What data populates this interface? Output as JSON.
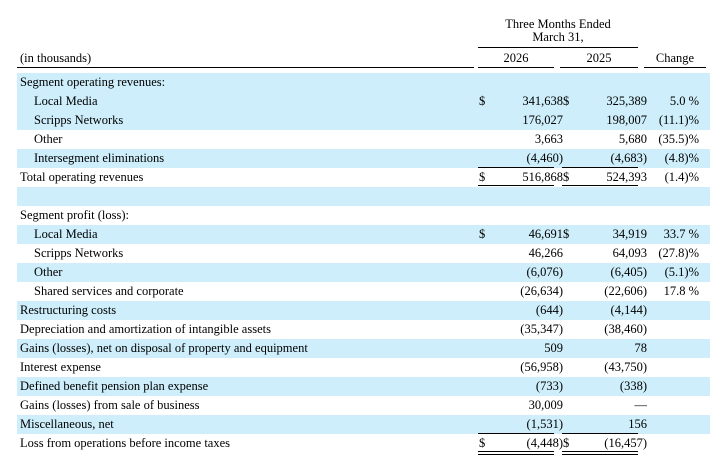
{
  "header": {
    "period_line1": "Three Months Ended",
    "period_line2": "March 31,",
    "units_label": "(in thousands)",
    "year1": "2026",
    "year2": "2025",
    "change": "Change"
  },
  "rows": [
    {
      "label": "Segment operating revenues:",
      "indent": false,
      "shade": true,
      "d1": "",
      "v1": "",
      "d2": "",
      "v2": "",
      "chg": "",
      "rule": ""
    },
    {
      "label": "Local Media",
      "indent": true,
      "shade": true,
      "d1": "$",
      "v1": "341,638",
      "d2": "$",
      "v2": "325,389",
      "chg": "5.0 %",
      "rule": ""
    },
    {
      "label": "Scripps Networks",
      "indent": true,
      "shade": true,
      "d1": "",
      "v1": "176,027",
      "d2": "",
      "v2": "198,007",
      "chg": "(11.1)%",
      "rule": ""
    },
    {
      "label": "Other",
      "indent": true,
      "shade": false,
      "d1": "",
      "v1": "3,663",
      "d2": "",
      "v2": "5,680",
      "chg": "(35.5)%",
      "rule": ""
    },
    {
      "label": "Intersegment eliminations",
      "indent": true,
      "shade": true,
      "d1": "",
      "v1": "(4,460)",
      "d2": "",
      "v2": "(4,683)",
      "chg": "(4.8)%",
      "rule": "single"
    },
    {
      "label": "Total operating revenues",
      "indent": false,
      "shade": false,
      "d1": "$",
      "v1": "516,868",
      "d2": "$",
      "v2": "524,393",
      "chg": "(1.4)%",
      "rule": "double"
    },
    {
      "label": "",
      "indent": false,
      "shade": true,
      "d1": "",
      "v1": "",
      "d2": "",
      "v2": "",
      "chg": "",
      "rule": ""
    },
    {
      "label": "Segment profit (loss):",
      "indent": false,
      "shade": false,
      "d1": "",
      "v1": "",
      "d2": "",
      "v2": "",
      "chg": "",
      "rule": ""
    },
    {
      "label": "Local Media",
      "indent": true,
      "shade": true,
      "d1": "$",
      "v1": "46,691",
      "d2": "$",
      "v2": "34,919",
      "chg": "33.7 %",
      "rule": ""
    },
    {
      "label": "Scripps Networks",
      "indent": true,
      "shade": false,
      "d1": "",
      "v1": "46,266",
      "d2": "",
      "v2": "64,093",
      "chg": "(27.8)%",
      "rule": ""
    },
    {
      "label": "Other",
      "indent": true,
      "shade": true,
      "d1": "",
      "v1": "(6,076)",
      "d2": "",
      "v2": "(6,405)",
      "chg": "(5.1)%",
      "rule": ""
    },
    {
      "label": "Shared services and corporate",
      "indent": true,
      "shade": false,
      "d1": "",
      "v1": "(26,634)",
      "d2": "",
      "v2": "(22,606)",
      "chg": "17.8 %",
      "rule": ""
    },
    {
      "label": "Restructuring costs",
      "indent": false,
      "shade": true,
      "d1": "",
      "v1": "(644)",
      "d2": "",
      "v2": "(4,144)",
      "chg": "",
      "rule": ""
    },
    {
      "label": "Depreciation and amortization of intangible assets",
      "indent": false,
      "shade": false,
      "d1": "",
      "v1": "(35,347)",
      "d2": "",
      "v2": "(38,460)",
      "chg": "",
      "rule": ""
    },
    {
      "label": "Gains (losses), net on disposal of property and equipment",
      "indent": false,
      "shade": true,
      "d1": "",
      "v1": "509",
      "d2": "",
      "v2": "78",
      "chg": "",
      "rule": ""
    },
    {
      "label": "Interest expense",
      "indent": false,
      "shade": false,
      "d1": "",
      "v1": "(56,958)",
      "d2": "",
      "v2": "(43,750)",
      "chg": "",
      "rule": ""
    },
    {
      "label": "Defined benefit pension plan expense",
      "indent": false,
      "shade": true,
      "d1": "",
      "v1": "(733)",
      "d2": "",
      "v2": "(338)",
      "chg": "",
      "rule": ""
    },
    {
      "label": "Gains (losses) from sale of business",
      "indent": false,
      "shade": false,
      "d1": "",
      "v1": "30,009",
      "d2": "",
      "v2": "—",
      "chg": "",
      "rule": ""
    },
    {
      "label": "Miscellaneous, net",
      "indent": false,
      "shade": true,
      "d1": "",
      "v1": "(1,531)",
      "d2": "",
      "v2": "156",
      "chg": "",
      "rule": "single"
    },
    {
      "label": "Loss from operations before income taxes",
      "indent": false,
      "shade": false,
      "d1": "$",
      "v1": "(4,448)",
      "d2": "$",
      "v2": "(16,457)",
      "chg": "",
      "rule": "double"
    }
  ]
}
